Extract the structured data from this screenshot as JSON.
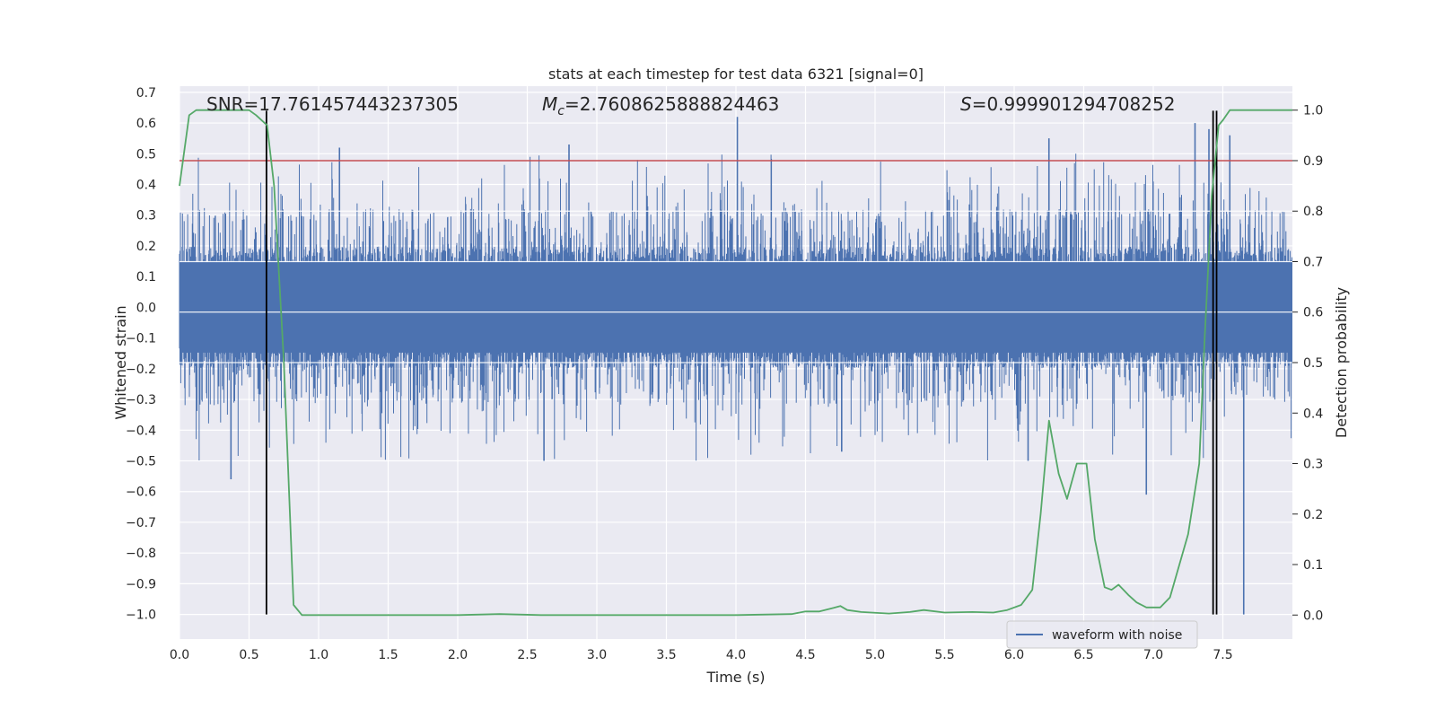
{
  "chart_data": {
    "type": "line",
    "title": "stats at each timestep for test data 6321 [signal=0]",
    "xlabel": "Time (s)",
    "ylabel": "Whitened strain",
    "y2label": "Detection probability",
    "xlim": [
      0.0,
      8.0
    ],
    "ylim": [
      -1.08,
      0.72
    ],
    "y2lim": [
      -0.0475,
      1.0475
    ],
    "xticks": [
      "0.0",
      "0.5",
      "1.0",
      "1.5",
      "2.0",
      "2.5",
      "3.0",
      "3.5",
      "4.0",
      "4.5",
      "5.0",
      "5.5",
      "6.0",
      "6.5",
      "7.0",
      "7.5"
    ],
    "yticks": [
      "0.7",
      "0.6",
      "0.5",
      "0.4",
      "0.3",
      "0.2",
      "0.1",
      "0.0",
      "−0.1",
      "−0.2",
      "−0.3",
      "−0.4",
      "−0.5",
      "−0.6",
      "−0.7",
      "−0.8",
      "−0.9",
      "−1.0"
    ],
    "y2ticks": [
      "1.0",
      "0.9",
      "0.8",
      "0.7",
      "0.6",
      "0.5",
      "0.4",
      "0.3",
      "0.2",
      "0.1",
      "0.0"
    ],
    "grid": true,
    "legend": {
      "position": "lower-right",
      "entries": [
        "waveform with noise"
      ]
    },
    "annotations": {
      "snr": "SNR=17.761457443237305",
      "mc_symbol": "M",
      "mc_sub": "c",
      "mc_value": "=2.7608625888824463",
      "s_symbol": "S",
      "s_value": "=0.999901294708252"
    },
    "threshold": {
      "axis": "right",
      "value": 0.9,
      "color": "#c44e52"
    },
    "vlines": {
      "x": [
        0.625,
        7.43,
        7.455
      ],
      "ymin": -1.0,
      "ymax": 0.64,
      "color": "#000000"
    },
    "series": [
      {
        "name": "waveform with noise",
        "axis": "left",
        "kind": "noise",
        "color": "#4c72b0",
        "x_range": [
          0.0,
          8.0
        ],
        "core_amplitude": 0.18,
        "notable_peaks": [
          {
            "x": 4.01,
            "y": 0.62
          },
          {
            "x": 7.3,
            "y": 0.6
          },
          {
            "x": 7.4,
            "y": 0.58
          },
          {
            "x": 7.55,
            "y": 0.56
          },
          {
            "x": 2.8,
            "y": 0.53
          },
          {
            "x": 6.25,
            "y": 0.55
          },
          {
            "x": 1.15,
            "y": 0.52
          },
          {
            "x": 0.37,
            "y": -0.56
          },
          {
            "x": 4.76,
            "y": -0.47
          },
          {
            "x": 2.62,
            "y": -0.5
          },
          {
            "x": 6.1,
            "y": -0.5
          },
          {
            "x": 6.95,
            "y": -0.61
          },
          {
            "x": 7.65,
            "y": -1.0
          }
        ]
      },
      {
        "name": "detection probability",
        "axis": "right",
        "color": "#55a868",
        "x": [
          0.0,
          0.07,
          0.12,
          0.2,
          0.3,
          0.4,
          0.5,
          0.55,
          0.63,
          0.68,
          0.75,
          0.82,
          0.88,
          1.0,
          1.5,
          2.0,
          2.3,
          2.6,
          3.0,
          3.5,
          4.0,
          4.4,
          4.5,
          4.6,
          4.7,
          4.75,
          4.8,
          4.9,
          5.1,
          5.25,
          5.35,
          5.5,
          5.7,
          5.85,
          5.95,
          6.05,
          6.13,
          6.19,
          6.25,
          6.32,
          6.38,
          6.45,
          6.52,
          6.58,
          6.65,
          6.7,
          6.75,
          6.82,
          6.88,
          6.95,
          7.05,
          7.12,
          7.25,
          7.33,
          7.37,
          7.42,
          7.47,
          7.5,
          7.55,
          7.65,
          7.8,
          8.0
        ],
        "y": [
          0.85,
          0.99,
          1.0,
          1.0,
          1.0,
          1.0,
          1.0,
          0.99,
          0.97,
          0.85,
          0.5,
          0.02,
          0.0,
          0.0,
          0.0,
          0.0,
          0.002,
          0.0,
          0.0,
          0.0,
          0.0,
          0.002,
          0.007,
          0.007,
          0.014,
          0.018,
          0.01,
          0.006,
          0.003,
          0.006,
          0.01,
          0.005,
          0.006,
          0.005,
          0.01,
          0.02,
          0.05,
          0.2,
          0.385,
          0.28,
          0.23,
          0.3,
          0.3,
          0.15,
          0.055,
          0.05,
          0.06,
          0.04,
          0.025,
          0.015,
          0.015,
          0.035,
          0.16,
          0.3,
          0.55,
          0.83,
          0.97,
          0.98,
          1.0,
          1.0,
          1.0,
          1.0
        ]
      }
    ]
  }
}
